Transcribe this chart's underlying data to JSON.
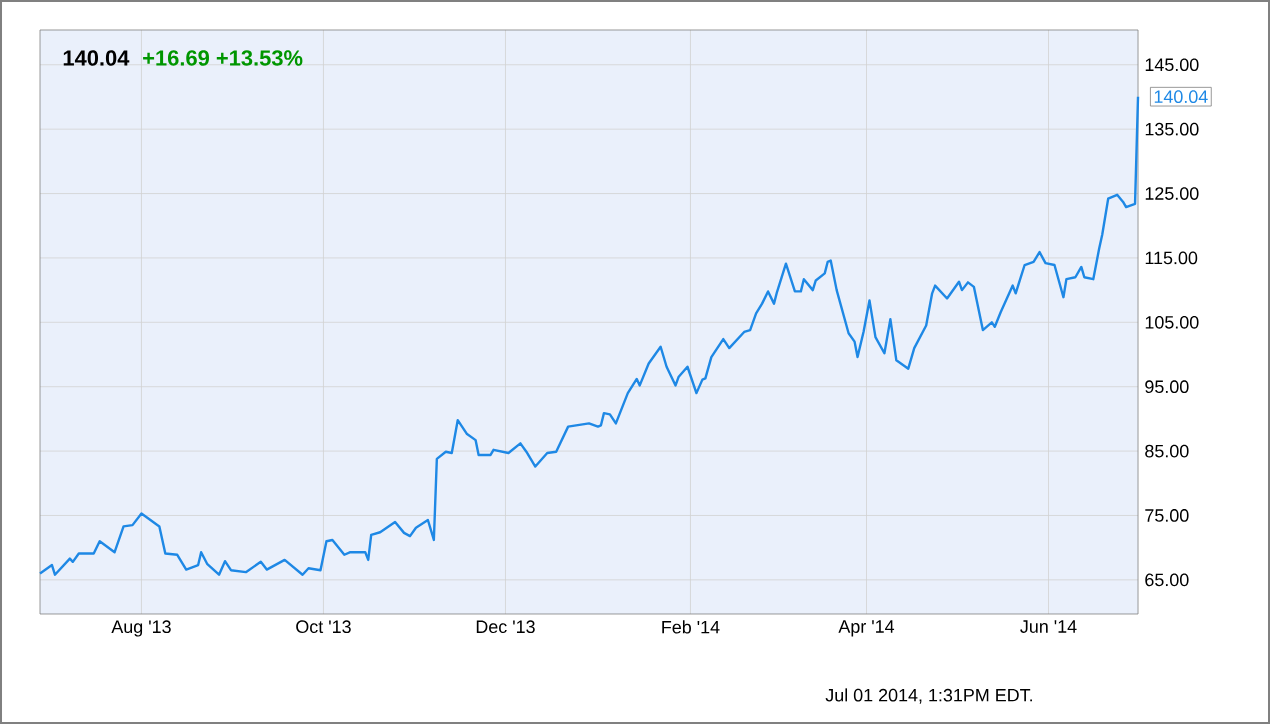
{
  "chart_data": {
    "type": "line",
    "title": "140.04",
    "subtitle": "+16.69 +13.53%",
    "annotations": [
      {
        "text": "140.04",
        "x": "2014-07-01",
        "y": 140.04
      },
      "Jul 01 2014, 1:31PM EDT."
    ],
    "x": [
      "2013-06-28",
      "2013-07-02",
      "2013-07-03",
      "2013-07-08",
      "2013-07-09",
      "2013-07-11",
      "2013-07-16",
      "2013-07-18",
      "2013-07-23",
      "2013-07-26",
      "2013-07-29",
      "2013-08-01",
      "2013-08-07",
      "2013-08-09",
      "2013-08-13",
      "2013-08-16",
      "2013-08-20",
      "2013-08-21",
      "2013-08-23",
      "2013-08-27",
      "2013-08-29",
      "2013-08-31",
      "2013-09-05",
      "2013-09-10",
      "2013-09-12",
      "2013-09-18",
      "2013-09-24",
      "2013-09-26",
      "2013-09-30",
      "2013-10-02",
      "2013-10-04",
      "2013-10-08",
      "2013-10-10",
      "2013-10-15",
      "2013-10-16",
      "2013-10-17",
      "2013-10-20",
      "2013-10-25",
      "2013-10-28",
      "2013-10-30",
      "2013-11-01",
      "2013-11-05",
      "2013-11-07",
      "2013-11-08",
      "2013-11-11",
      "2013-11-13",
      "2013-11-15",
      "2013-11-18",
      "2013-11-21",
      "2013-11-22",
      "2013-11-26",
      "2013-11-27",
      "2013-12-02",
      "2013-12-06",
      "2013-12-08",
      "2013-12-11",
      "2013-12-15",
      "2013-12-18",
      "2013-12-22",
      "2013-12-29",
      "2014-01-01",
      "2014-01-02",
      "2014-01-03",
      "2014-01-05",
      "2014-01-07",
      "2014-01-11",
      "2014-01-14",
      "2014-01-15",
      "2014-01-18",
      "2014-01-22",
      "2014-01-24",
      "2014-01-27",
      "2014-01-28",
      "2014-01-31",
      "2014-02-03",
      "2014-02-05",
      "2014-02-06",
      "2014-02-08",
      "2014-02-12",
      "2014-02-14",
      "2014-02-19",
      "2014-02-21",
      "2014-02-23",
      "2014-02-25",
      "2014-02-27",
      "2014-03-01",
      "2014-03-02",
      "2014-03-05",
      "2014-03-08",
      "2014-03-10",
      "2014-03-11",
      "2014-03-14",
      "2014-03-15",
      "2014-03-18",
      "2014-03-19",
      "2014-03-20",
      "2014-03-22",
      "2014-03-26",
      "2014-03-28",
      "2014-03-29",
      "2014-03-31",
      "2014-04-02",
      "2014-04-04",
      "2014-04-07",
      "2014-04-09",
      "2014-04-11",
      "2014-04-15",
      "2014-04-17",
      "2014-04-21",
      "2014-04-23",
      "2014-04-24",
      "2014-04-28",
      "2014-05-02",
      "2014-05-03",
      "2014-05-05",
      "2014-05-07",
      "2014-05-10",
      "2014-05-13",
      "2014-05-14",
      "2014-05-16",
      "2014-05-20",
      "2014-05-21",
      "2014-05-24",
      "2014-05-27",
      "2014-05-29",
      "2014-05-31",
      "2014-06-03",
      "2014-06-06",
      "2014-06-07",
      "2014-06-10",
      "2014-06-12",
      "2014-06-13",
      "2014-06-16",
      "2014-06-18",
      "2014-06-19",
      "2014-06-21",
      "2014-06-24",
      "2014-06-26",
      "2014-06-27",
      "2014-06-30",
      "2014-07-01"
    ],
    "series": [
      {
        "color": "#1e88e5",
        "values": [
          66.0,
          67.3,
          65.8,
          68.3,
          67.8,
          69.1,
          69.1,
          71.0,
          69.3,
          73.3,
          73.5,
          75.3,
          73.3,
          69.1,
          68.9,
          66.6,
          67.3,
          69.3,
          67.5,
          65.8,
          67.9,
          66.5,
          66.2,
          67.8,
          66.6,
          68.1,
          65.8,
          66.8,
          66.5,
          71.0,
          71.2,
          68.9,
          69.3,
          69.3,
          68.1,
          72.0,
          72.4,
          74.0,
          72.3,
          71.8,
          73.1,
          74.3,
          71.2,
          83.8,
          84.9,
          84.7,
          89.8,
          87.7,
          86.7,
          84.4,
          84.4,
          85.2,
          84.7,
          86.2,
          84.9,
          82.6,
          84.7,
          84.9,
          88.8,
          89.3,
          88.8,
          89.0,
          90.9,
          90.7,
          89.3,
          94.0,
          96.2,
          95.2,
          98.6,
          101.2,
          98.1,
          95.2,
          96.5,
          98.1,
          94.0,
          96.1,
          96.3,
          99.6,
          102.4,
          101.0,
          103.5,
          103.8,
          106.4,
          107.9,
          109.8,
          107.9,
          109.7,
          114.1,
          109.8,
          109.8,
          111.7,
          110.0,
          111.5,
          112.6,
          114.4,
          114.6,
          110.0,
          103.3,
          102.0,
          99.6,
          103.5,
          108.4,
          102.7,
          100.2,
          105.5,
          99.1,
          97.8,
          101.0,
          104.5,
          109.5,
          110.7,
          108.7,
          111.3,
          110.0,
          111.2,
          110.5,
          103.8,
          105.0,
          104.3,
          106.6,
          110.7,
          109.5,
          113.9,
          114.4,
          115.9,
          114.2,
          113.9,
          108.9,
          111.7,
          112.0,
          113.6,
          112.0,
          111.7,
          116.5,
          118.6,
          124.2,
          124.8,
          123.7,
          122.9,
          123.4,
          140.04
        ]
      }
    ],
    "xlim": [
      "2013-06-28",
      "2014-07-01"
    ],
    "xticks": [
      {
        "value": "2013-08-01",
        "label": "Aug '13"
      },
      {
        "value": "2013-10-01",
        "label": "Oct '13"
      },
      {
        "value": "2013-12-01",
        "label": "Dec '13"
      },
      {
        "value": "2014-02-01",
        "label": "Feb '14"
      },
      {
        "value": "2014-04-01",
        "label": "Apr '14"
      },
      {
        "value": "2014-06-01",
        "label": "Jun '14"
      }
    ],
    "ylim": [
      59.7,
      150.4
    ],
    "yticks": [
      {
        "value": 65,
        "label": "65.00"
      },
      {
        "value": 75,
        "label": "75.00"
      },
      {
        "value": 85,
        "label": "85.00"
      },
      {
        "value": 95,
        "label": "95.00"
      },
      {
        "value": 105,
        "label": "105.00"
      },
      {
        "value": 115,
        "label": "115.00"
      },
      {
        "value": 125,
        "label": "125.00"
      },
      {
        "value": 135,
        "label": "135.00"
      },
      {
        "value": 145,
        "label": "145.00"
      }
    ],
    "grid": true
  }
}
